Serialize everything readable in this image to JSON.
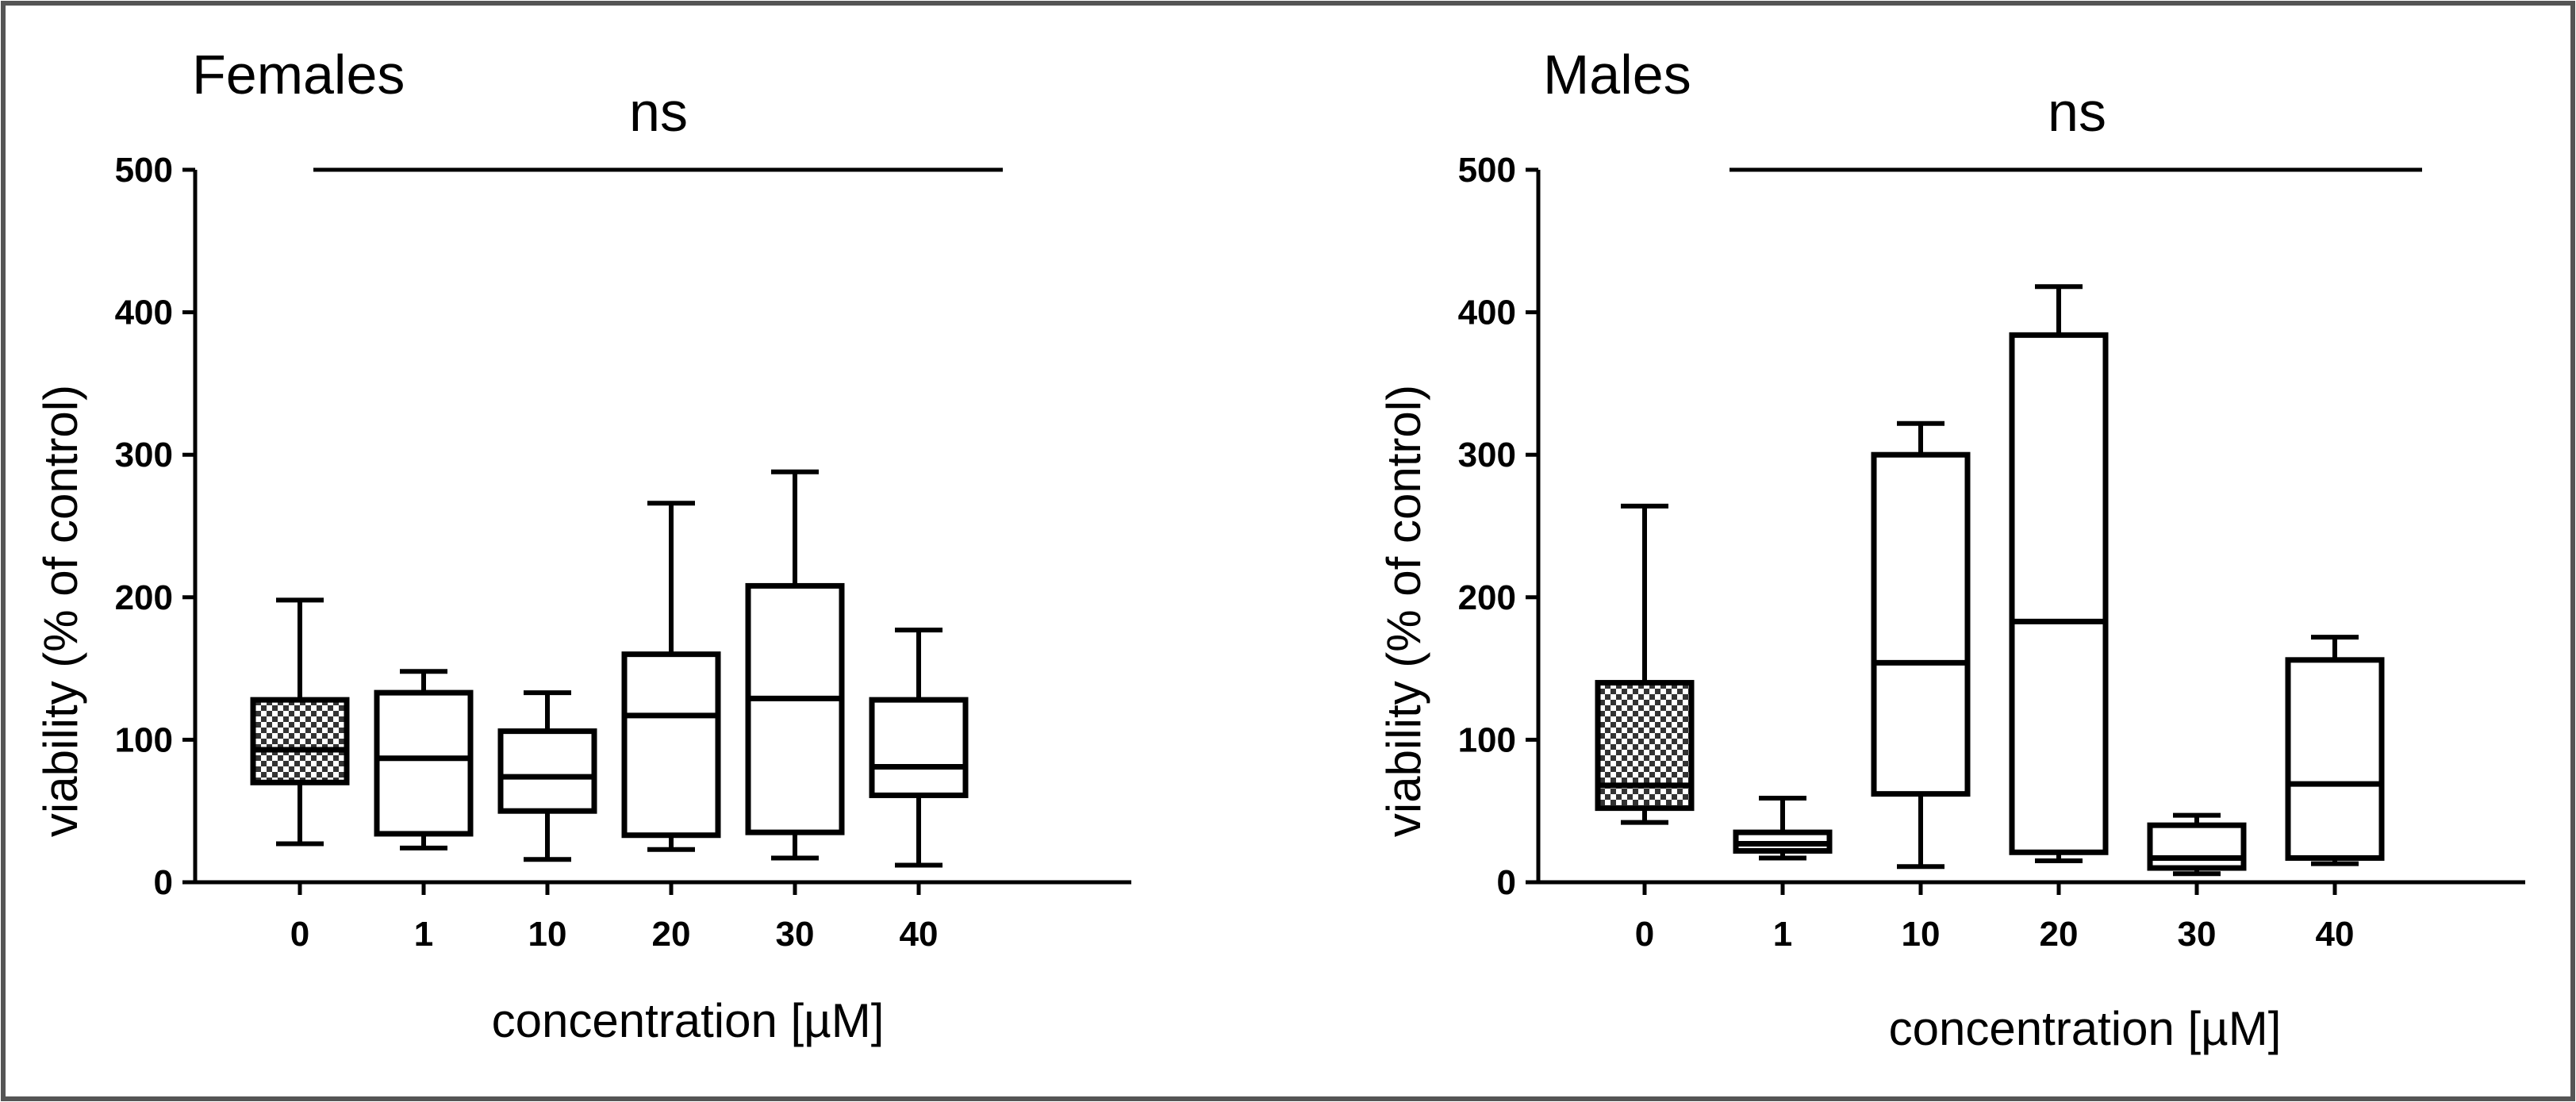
{
  "chart_data": [
    {
      "type": "box",
      "title": "Females",
      "significance": "ns",
      "xlabel": "concentration [µM]",
      "ylabel": "viability (% of control)",
      "ylim": [
        0,
        500
      ],
      "yticks": [
        0,
        100,
        200,
        300,
        400,
        500
      ],
      "categories": [
        "0",
        "1",
        "10",
        "20",
        "30",
        "40"
      ],
      "boxes": [
        {
          "category": "0",
          "min": 27,
          "q1": 70,
          "median": 93,
          "q3": 128,
          "max": 198,
          "patterned": true
        },
        {
          "category": "1",
          "min": 24,
          "q1": 34,
          "median": 87,
          "q3": 133,
          "max": 148,
          "patterned": false
        },
        {
          "category": "10",
          "min": 16,
          "q1": 50,
          "median": 74,
          "q3": 106,
          "max": 133,
          "patterned": false
        },
        {
          "category": "20",
          "min": 23,
          "q1": 33,
          "median": 117,
          "q3": 160,
          "max": 266,
          "patterned": false
        },
        {
          "category": "30",
          "min": 17,
          "q1": 35,
          "median": 129,
          "q3": 208,
          "max": 288,
          "patterned": false
        },
        {
          "category": "40",
          "min": 12,
          "q1": 61,
          "median": 81,
          "q3": 128,
          "max": 177,
          "patterned": false
        }
      ]
    },
    {
      "type": "box",
      "title": "Males",
      "significance": "ns",
      "xlabel": "concentration [µM]",
      "ylabel": "viability (% of control)",
      "ylim": [
        0,
        500
      ],
      "yticks": [
        0,
        100,
        200,
        300,
        400,
        500
      ],
      "categories": [
        "0",
        "1",
        "10",
        "20",
        "30",
        "40"
      ],
      "boxes": [
        {
          "category": "0",
          "min": 42,
          "q1": 52,
          "median": 68,
          "q3": 140,
          "max": 264,
          "patterned": true
        },
        {
          "category": "1",
          "min": 17,
          "q1": 22,
          "median": 27,
          "q3": 35,
          "max": 59,
          "patterned": false
        },
        {
          "category": "10",
          "min": 11,
          "q1": 62,
          "median": 154,
          "q3": 300,
          "max": 322,
          "patterned": false
        },
        {
          "category": "20",
          "min": 15,
          "q1": 21,
          "median": 183,
          "q3": 384,
          "max": 418,
          "patterned": false
        },
        {
          "category": "30",
          "min": 6,
          "q1": 10,
          "median": 17,
          "q3": 40,
          "max": 47,
          "patterned": false
        },
        {
          "category": "40",
          "min": 13,
          "q1": 17,
          "median": 69,
          "q3": 156,
          "max": 172,
          "patterned": false
        }
      ]
    }
  ]
}
